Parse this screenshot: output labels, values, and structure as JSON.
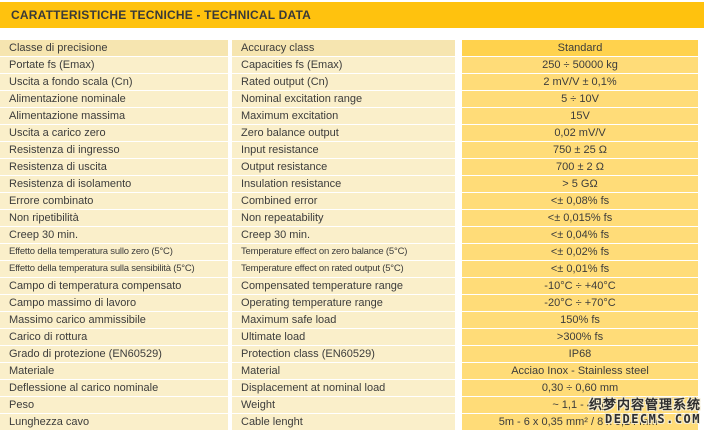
{
  "title": "CARATTERISTICHE TECNICHE - TECHNICAL DATA",
  "colors": {
    "title_bar": "#ffc20e",
    "cell_cream": "#faefca",
    "header_cream": "#f6e5b0",
    "cell_gold": "#ffdc78",
    "header_gold": "#ffd24d",
    "text": "#3c3c3b"
  },
  "table": {
    "header": {
      "it": "Classe di precisione",
      "en": "Accuracy class",
      "value": "Standard"
    },
    "rows": [
      {
        "it": "Portate fs (Emax)",
        "en": "Capacities fs (Emax)",
        "value": "250 ÷ 50000 kg"
      },
      {
        "it": "Uscita a fondo scala (Cn)",
        "en": "Rated output (Cn)",
        "value": "2 mV/V ± 0,1%"
      },
      {
        "it": "Alimentazione nominale",
        "en": "Nominal excitation range",
        "value": "5 ÷ 10V"
      },
      {
        "it": "Alimentazione massima",
        "en": "Maximum excitation",
        "value": "15V"
      },
      {
        "it": "Uscita a carico zero",
        "en": "Zero balance output",
        "value": "0,02 mV/V"
      },
      {
        "it": "Resistenza di ingresso",
        "en": "Input resistance",
        "value": "750 ± 25 Ω"
      },
      {
        "it": "Resistenza di uscita",
        "en": "Output resistance",
        "value": "700 ± 2 Ω"
      },
      {
        "it": "Resistenza di isolamento",
        "en": "Insulation resistance",
        "value": "> 5 GΩ"
      },
      {
        "it": "Errore combinato",
        "en": "Combined error",
        "value": "<± 0,08% fs"
      },
      {
        "it": "Non ripetibilità",
        "en": "Non repeatability",
        "value": "<± 0,015% fs"
      },
      {
        "it": "Creep 30 min.",
        "en": "Creep 30 min.",
        "value": "<± 0,04% fs"
      },
      {
        "it": "Effetto della temperatura sullo zero (5°C)",
        "en": "Temperature effect on zero balance (5°C)",
        "value": "<± 0,02% fs"
      },
      {
        "it": "Effetto della temperatura sulla sensibilità (5°C)",
        "en": "Temperature effect on rated output (5°C)",
        "value": "<± 0,01% fs"
      },
      {
        "it": "Campo di temperatura compensato",
        "en": "Compensated temperature range",
        "value": "-10°C ÷ +40°C"
      },
      {
        "it": "Campo massimo di lavoro",
        "en": "Operating temperature range",
        "value": "-20°C ÷ +70°C"
      },
      {
        "it": "Massimo carico ammissibile",
        "en": "Maximum safe load",
        "value": "150% fs"
      },
      {
        "it": "Carico di rottura",
        "en": "Ultimate load",
        "value": ">300% fs"
      },
      {
        "it": "Grado di protezione (EN60529)",
        "en": "Protection class (EN60529)",
        "value": "IP68"
      },
      {
        "it": "Materiale",
        "en": "Material",
        "value": "Acciao Inox - Stainless steel"
      },
      {
        "it": "Deflessione al carico nominale",
        "en": "Displacement at nominal load",
        "value": "0,30 ÷ 0,60 mm"
      },
      {
        "it": "Peso",
        "en": "Weight",
        "value": "~ 1,1 - 4 kg"
      },
      {
        "it": "Lunghezza cavo",
        "en": "Cable lenght",
        "value": "5m - 6 x 0,35 mm² / 8 x 0,14 mm²"
      }
    ]
  },
  "watermark": {
    "line1": "织梦内容管理系统",
    "line2": "DEDECMS.COM"
  }
}
